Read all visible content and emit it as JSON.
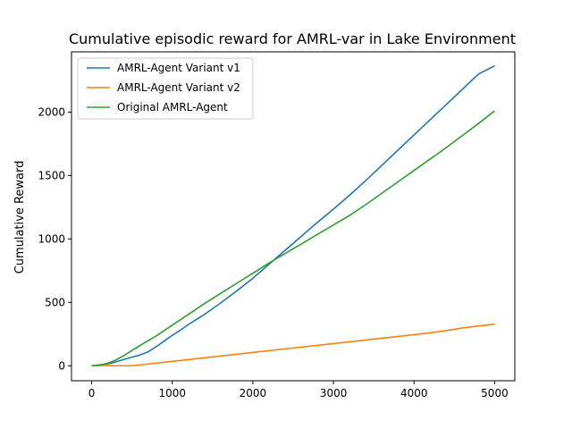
{
  "chart_data": {
    "type": "line",
    "title": "Cumulative episodic reward for AMRL-var in Lake Environment",
    "xlabel": "",
    "ylabel": "Cumulative Reward",
    "xlim": [
      -250,
      5250
    ],
    "ylim": [
      -118,
      2475
    ],
    "xticks": [
      0,
      1000,
      2000,
      3000,
      4000,
      5000
    ],
    "yticks": [
      0,
      500,
      1000,
      1500,
      2000
    ],
    "grid": false,
    "legend": "top-left",
    "series": [
      {
        "name": "AMRL-Agent Variant v1",
        "color": "#1f77b4",
        "x": [
          0,
          200,
          300,
          400,
          500,
          600,
          700,
          800,
          900,
          1000,
          1100,
          1200,
          1300,
          1400,
          1500,
          1600,
          1800,
          2000,
          2200,
          2400,
          2600,
          2800,
          3000,
          3200,
          3400,
          3600,
          3800,
          4000,
          4200,
          4400,
          4600,
          4800,
          5000
        ],
        "y": [
          0,
          15,
          30,
          50,
          68,
          85,
          110,
          150,
          195,
          240,
          280,
          325,
          365,
          405,
          450,
          495,
          590,
          690,
          800,
          910,
          1020,
          1130,
          1235,
          1345,
          1460,
          1580,
          1700,
          1820,
          1940,
          2060,
          2180,
          2300,
          2365
        ]
      },
      {
        "name": "AMRL-Agent Variant v2",
        "color": "#ff7f0e",
        "x": [
          0,
          100,
          200,
          300,
          400,
          500,
          1000,
          1500,
          2000,
          2500,
          3000,
          3500,
          4000,
          4300,
          4600,
          5000
        ],
        "y": [
          0,
          3,
          1,
          0,
          0,
          0,
          35,
          70,
          105,
          140,
          175,
          210,
          245,
          268,
          298,
          328
        ]
      },
      {
        "name": "Original AMRL-Agent",
        "color": "#2ca02c",
        "x": [
          0,
          100,
          200,
          300,
          400,
          500,
          600,
          800,
          1000,
          1200,
          1400,
          1600,
          1800,
          2000,
          2200,
          2400,
          2600,
          2800,
          3000,
          3200,
          3400,
          3600,
          3800,
          4000,
          4200,
          4400,
          4600,
          4800,
          5000
        ],
        "y": [
          0,
          5,
          20,
          45,
          80,
          120,
          160,
          235,
          320,
          405,
          490,
          570,
          650,
          730,
          810,
          885,
          960,
          1035,
          1110,
          1185,
          1270,
          1360,
          1450,
          1540,
          1630,
          1720,
          1815,
          1910,
          2010
        ]
      }
    ]
  }
}
